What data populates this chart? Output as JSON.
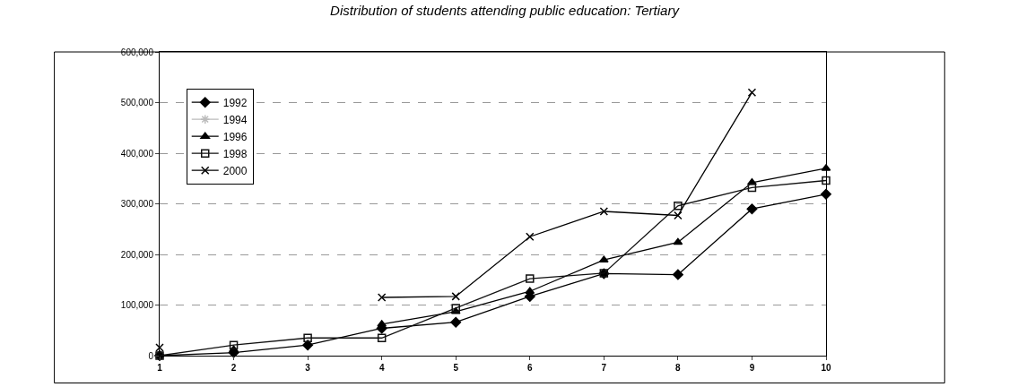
{
  "chart_data": {
    "type": "line",
    "title": "Distribution of students attending public education: Tertiary",
    "x": [
      1,
      2,
      3,
      4,
      5,
      6,
      7,
      8,
      9,
      10
    ],
    "xlim": [
      1,
      10
    ],
    "xticks": [
      1,
      2,
      3,
      4,
      5,
      6,
      7,
      8,
      9,
      10
    ],
    "ylim": [
      0,
      600000
    ],
    "yticks": [
      {
        "value": 0,
        "label": "0"
      },
      {
        "value": 100000,
        "label": "100,000"
      },
      {
        "value": 200000,
        "label": "200,000"
      },
      {
        "value": 300000,
        "label": "300,000"
      },
      {
        "value": 400000,
        "label": "400,000"
      },
      {
        "value": 500000,
        "label": "500,000"
      },
      {
        "value": 600000,
        "label": "600,000"
      }
    ],
    "grid": "y",
    "legend": "top left",
    "line_style": "solid",
    "series": [
      {
        "name": "1992",
        "color": "#000000",
        "marker": "diamond",
        "values": [
          0,
          6000,
          21000,
          54000,
          66000,
          117000,
          162000,
          160000,
          290000,
          319000
        ]
      },
      {
        "name": "1994",
        "color": "#bbbbbb",
        "marker": "star",
        "values": [
          null,
          null,
          null,
          null,
          null,
          null,
          null,
          null,
          null,
          null
        ]
      },
      {
        "name": "1996",
        "color": "#000000",
        "marker": "triangle",
        "values": [
          null,
          12000,
          null,
          62000,
          87000,
          127000,
          189000,
          224000,
          342000,
          370000
        ]
      },
      {
        "name": "1998",
        "color": "#111111",
        "marker": "square",
        "values": [
          0,
          21000,
          35000,
          35000,
          94000,
          152000,
          163000,
          296000,
          332000,
          346000
        ]
      },
      {
        "name": "2000",
        "color": "#000000",
        "marker": "cross",
        "values": [
          16000,
          null,
          null,
          115000,
          117000,
          235000,
          285000,
          277000,
          520000,
          null
        ]
      }
    ]
  }
}
